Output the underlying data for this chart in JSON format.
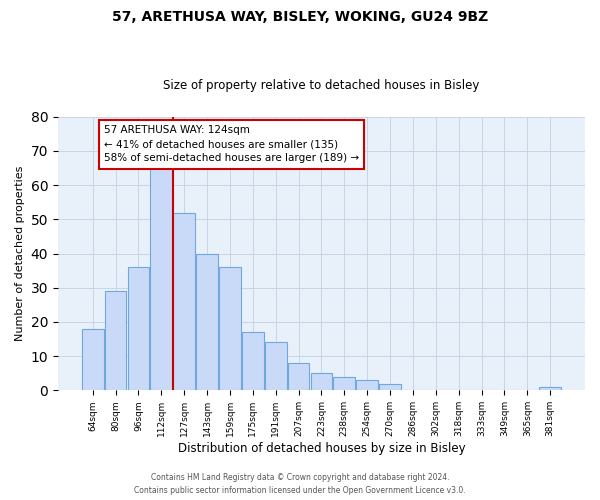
{
  "title": "57, ARETHUSA WAY, BISLEY, WOKING, GU24 9BZ",
  "subtitle": "Size of property relative to detached houses in Bisley",
  "xlabel": "Distribution of detached houses by size in Bisley",
  "ylabel": "Number of detached properties",
  "bar_labels": [
    "64sqm",
    "80sqm",
    "96sqm",
    "112sqm",
    "127sqm",
    "143sqm",
    "159sqm",
    "175sqm",
    "191sqm",
    "207sqm",
    "223sqm",
    "238sqm",
    "254sqm",
    "270sqm",
    "286sqm",
    "302sqm",
    "318sqm",
    "333sqm",
    "349sqm",
    "365sqm",
    "381sqm"
  ],
  "bar_heights": [
    18,
    29,
    36,
    67,
    52,
    40,
    36,
    17,
    14,
    8,
    5,
    4,
    3,
    2,
    0,
    0,
    0,
    0,
    0,
    0,
    1
  ],
  "bar_color": "#c9daf8",
  "bar_edge_color": "#6fa8dc",
  "property_line_color": "#cc0000",
  "annotation_text": "57 ARETHUSA WAY: 124sqm\n← 41% of detached houses are smaller (135)\n58% of semi-detached houses are larger (189) →",
  "annotation_box_color": "#ffffff",
  "annotation_box_edge_color": "#cc0000",
  "ylim": [
    0,
    80
  ],
  "yticks": [
    0,
    10,
    20,
    30,
    40,
    50,
    60,
    70,
    80
  ],
  "grid_color": "#c8d4e8",
  "background_color": "#e8f0fa",
  "footer_line1": "Contains HM Land Registry data © Crown copyright and database right 2024.",
  "footer_line2": "Contains public sector information licensed under the Open Government Licence v3.0."
}
